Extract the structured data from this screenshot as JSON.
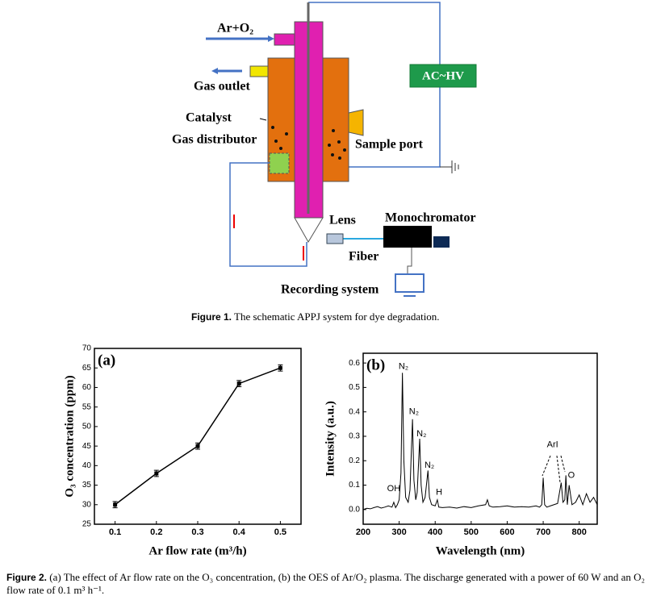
{
  "figure1": {
    "labels": {
      "inlet": "Ar+O₂",
      "outlet": "Gas outlet",
      "power": "AC~HV",
      "catalyst": "Catalyst",
      "distributor": "Gas distributor",
      "sample_port": "Sample port",
      "lens": "Lens",
      "monochromator": "Monochromator",
      "fiber": "Fiber",
      "recorder": "Recording system"
    },
    "caption_label": "Figure 1.",
    "caption": "The schematic APPJ system for dye degradation."
  },
  "chart_data": [
    {
      "type": "line",
      "title": "(a)",
      "x_label": "Ar flow rate (m³/h)",
      "y_label": "O₃ concentration (ppm)",
      "x": [
        0.1,
        0.2,
        0.3,
        0.4,
        0.5
      ],
      "values": [
        30,
        38,
        45,
        61,
        65
      ],
      "errors": [
        0.8,
        0.8,
        0.8,
        0.8,
        0.8
      ],
      "color": "#000000",
      "markers": true,
      "xlim": [
        0.05,
        0.55
      ],
      "xticks": [
        0.1,
        0.2,
        0.3,
        0.4,
        0.5
      ],
      "ylim": [
        25,
        70
      ],
      "yticks": [
        25,
        30,
        35,
        40,
        45,
        50,
        55,
        60,
        65,
        70
      ]
    },
    {
      "type": "line",
      "title": "(b)",
      "x_label": "Wavelength (nm)",
      "y_label": "Intensity (a.u.)",
      "x": [
        200,
        210,
        220,
        230,
        240,
        250,
        260,
        270,
        280,
        285,
        290,
        295,
        300,
        305,
        309,
        313,
        318,
        325,
        330,
        337,
        341,
        346,
        350,
        357,
        361,
        366,
        372,
        380,
        384,
        390,
        400,
        406,
        410,
        420,
        440,
        460,
        480,
        500,
        520,
        540,
        545,
        550,
        560,
        580,
        600,
        620,
        640,
        660,
        680,
        690,
        696,
        700,
        704,
        710,
        720,
        730,
        740,
        750,
        755,
        760,
        763,
        767,
        772,
        780,
        790,
        800,
        810,
        820,
        830,
        840,
        850
      ],
      "values": [
        0.0,
        0.005,
        0.003,
        0.008,
        0.012,
        0.006,
        0.01,
        0.015,
        0.01,
        0.03,
        0.008,
        0.02,
        0.04,
        0.15,
        0.56,
        0.2,
        0.05,
        0.03,
        0.08,
        0.37,
        0.12,
        0.04,
        0.07,
        0.29,
        0.1,
        0.03,
        0.05,
        0.16,
        0.05,
        0.02,
        0.015,
        0.04,
        0.01,
        0.008,
        0.01,
        0.006,
        0.012,
        0.008,
        0.015,
        0.02,
        0.04,
        0.015,
        0.01,
        0.012,
        0.015,
        0.01,
        0.012,
        0.01,
        0.015,
        0.01,
        0.02,
        0.13,
        0.02,
        0.01,
        0.015,
        0.02,
        0.025,
        0.11,
        0.03,
        0.04,
        0.14,
        0.02,
        0.1,
        0.02,
        0.03,
        0.06,
        0.02,
        0.065,
        0.03,
        0.05,
        0.02
      ],
      "color": "#000000",
      "markers": false,
      "xlim": [
        200,
        850
      ],
      "xticks": [
        200,
        300,
        400,
        500,
        600,
        700,
        800
      ],
      "ylim": [
        -0.06,
        0.64
      ],
      "yticks": [
        {
          "value": 0,
          "label": "0.0"
        },
        0.1,
        0.2,
        0.3,
        0.4,
        0.5,
        0.6
      ],
      "annotations": [
        {
          "text": "N₂",
          "x": 312,
          "y": 0.585
        },
        {
          "text": "N₂",
          "x": 341,
          "y": 0.4
        },
        {
          "text": "N₂",
          "x": 362,
          "y": 0.31
        },
        {
          "text": "N₂",
          "x": 384,
          "y": 0.18
        },
        {
          "text": "OH",
          "x": 285,
          "y": 0.085
        },
        {
          "text": "H",
          "x": 411,
          "y": 0.07
        },
        {
          "text": "ArI",
          "x": 726,
          "y": 0.265
        },
        {
          "text": "O",
          "x": 778,
          "y": 0.14
        }
      ]
    }
  ],
  "figure2": {
    "caption_label": "Figure 2.",
    "caption": "(a) The effect of Ar flow rate on the O₃ concentration, (b) the OES of Ar/O₂ plasma. The discharge generated with a power of 60 W and an O₂ flow rate of 0.1 m³ h⁻¹."
  }
}
